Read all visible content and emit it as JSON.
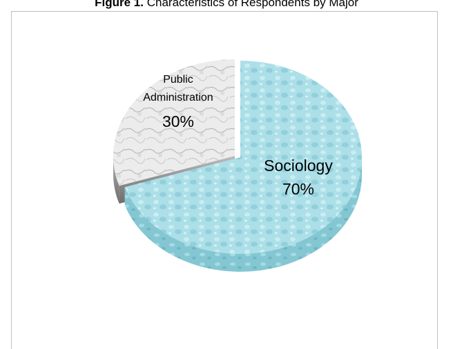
{
  "caption": {
    "number": "Figure 1.",
    "text": "Characteristics of Respondents by Major"
  },
  "chart_data": {
    "type": "pie",
    "style": "3d-exploded",
    "categories": [
      "Sociology",
      "Public Administration"
    ],
    "values": [
      70,
      30
    ],
    "labels": [
      {
        "name": "Sociology",
        "value_text": "70%"
      },
      {
        "name": "Public Administration",
        "name_lines": [
          "Public",
          "Administration"
        ],
        "value_text": "30%"
      }
    ],
    "colors": {
      "sociology_fill": "#a9dde6",
      "sociology_side": "#7fc3d0",
      "public_admin_fill": "#e6e6e6",
      "public_admin_side": "#9e9e9e",
      "border": "#bfbfbf"
    },
    "legend": "none"
  }
}
